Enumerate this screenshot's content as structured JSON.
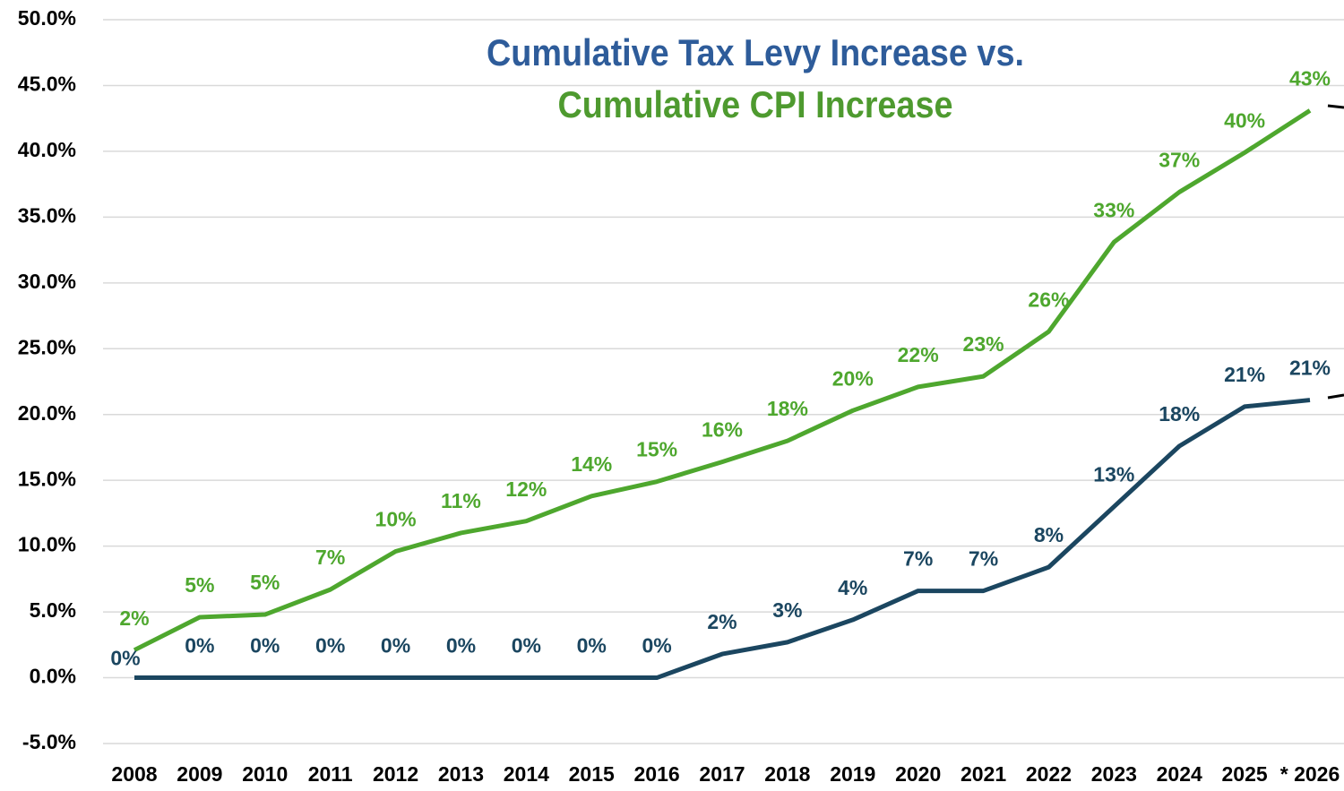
{
  "chart_data": {
    "type": "line",
    "title": "Cumulative Tax Levy Increase vs.",
    "subtitle": "Cumulative CPI Increase",
    "categories": [
      "2008",
      "2009",
      "2010",
      "2011",
      "2012",
      "2013",
      "2014",
      "2015",
      "2016",
      "2017",
      "2018",
      "2019",
      "2020",
      "2021",
      "2022",
      "2023",
      "2024",
      "2025",
      "* 2026"
    ],
    "series": [
      {
        "name": "Cumulative CPI Increase",
        "color": "#4ea72e",
        "values": [
          2.1,
          4.6,
          4.8,
          6.7,
          9.6,
          11.0,
          11.9,
          13.8,
          14.9,
          16.4,
          18.0,
          20.3,
          22.1,
          22.9,
          26.3,
          33.1,
          36.9,
          39.9,
          43.1
        ],
        "value_labels": [
          "2%",
          "5%",
          "5%",
          "7%",
          "10%",
          "11%",
          "12%",
          "14%",
          "15%",
          "16%",
          "18%",
          "20%",
          "22%",
          "23%",
          "26%",
          "33%",
          "37%",
          "40%",
          "43%"
        ]
      },
      {
        "name": "Cumulative Tax Levy Increase",
        "color": "#1b4660",
        "values": [
          0,
          0,
          0,
          0,
          0,
          0,
          0,
          0,
          0,
          1.8,
          2.7,
          4.4,
          6.6,
          6.6,
          8.4,
          13.0,
          17.6,
          20.6,
          21.1
        ],
        "value_labels": [
          "0%",
          "0%",
          "0%",
          "0%",
          "0%",
          "0%",
          "0%",
          "0%",
          "0%",
          "2%",
          "3%",
          "4%",
          "7%",
          "7%",
          "8%",
          "13%",
          "18%",
          "21%",
          "21%"
        ]
      }
    ],
    "ylim": [
      -5,
      50
    ],
    "yticks": [
      {
        "value": -5,
        "label": "-5.0%"
      },
      {
        "value": 0,
        "label": "0.0%"
      },
      {
        "value": 5,
        "label": "5.0%"
      },
      {
        "value": 10,
        "label": "10.0%"
      },
      {
        "value": 15,
        "label": "15.0%"
      },
      {
        "value": 20,
        "label": "20.0%"
      },
      {
        "value": 25,
        "label": "25.0%"
      },
      {
        "value": 30,
        "label": "30.0%"
      },
      {
        "value": 35,
        "label": "35.0%"
      },
      {
        "value": 40,
        "label": "40.0%"
      },
      {
        "value": 45,
        "label": "45.0%"
      },
      {
        "value": 50,
        "label": "50.0%"
      }
    ],
    "grid": true
  }
}
